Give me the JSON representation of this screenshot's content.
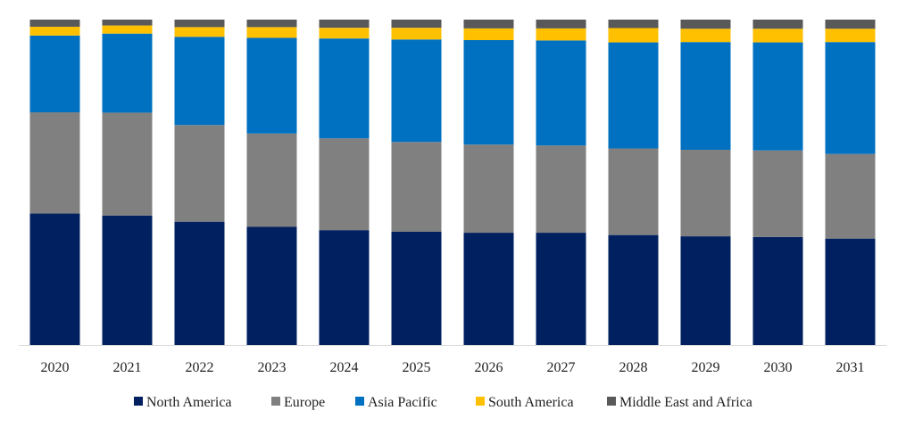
{
  "chart_data": {
    "type": "bar",
    "stacked": true,
    "percent_stacked": true,
    "title": "",
    "xlabel": "",
    "ylabel": "",
    "ylim": [
      0,
      100
    ],
    "grid": false,
    "legend_position": "bottom",
    "categories": [
      "2020",
      "2021",
      "2022",
      "2023",
      "2024",
      "2025",
      "2026",
      "2027",
      "2028",
      "2029",
      "2030",
      "2031"
    ],
    "series": [
      {
        "name": "North America",
        "color": "#002060",
        "values": [
          40.4,
          39.8,
          37.9,
          36.3,
          35.3,
          34.8,
          34.5,
          34.5,
          33.8,
          33.4,
          33.2,
          32.7
        ]
      },
      {
        "name": "Europe",
        "color": "#808080",
        "values": [
          31.1,
          31.6,
          29.7,
          28.7,
          28.2,
          27.6,
          27.1,
          26.8,
          26.6,
          26.6,
          26.6,
          26.0
        ]
      },
      {
        "name": "Asia Pacific",
        "color": "#0070C0",
        "values": [
          23.6,
          24.3,
          27.1,
          29.4,
          30.7,
          31.5,
          32.1,
          32.3,
          32.6,
          33.1,
          33.2,
          34.4
        ]
      },
      {
        "name": "South America",
        "color": "#FFC000",
        "values": [
          2.7,
          2.5,
          3.0,
          3.3,
          3.3,
          3.6,
          3.6,
          3.7,
          4.4,
          4.1,
          4.2,
          4.1
        ]
      },
      {
        "name": "Middle East and Africa",
        "color": "#595959",
        "values": [
          2.2,
          1.8,
          2.3,
          2.3,
          2.5,
          2.5,
          2.7,
          2.7,
          2.6,
          2.8,
          2.8,
          2.8
        ]
      }
    ]
  }
}
